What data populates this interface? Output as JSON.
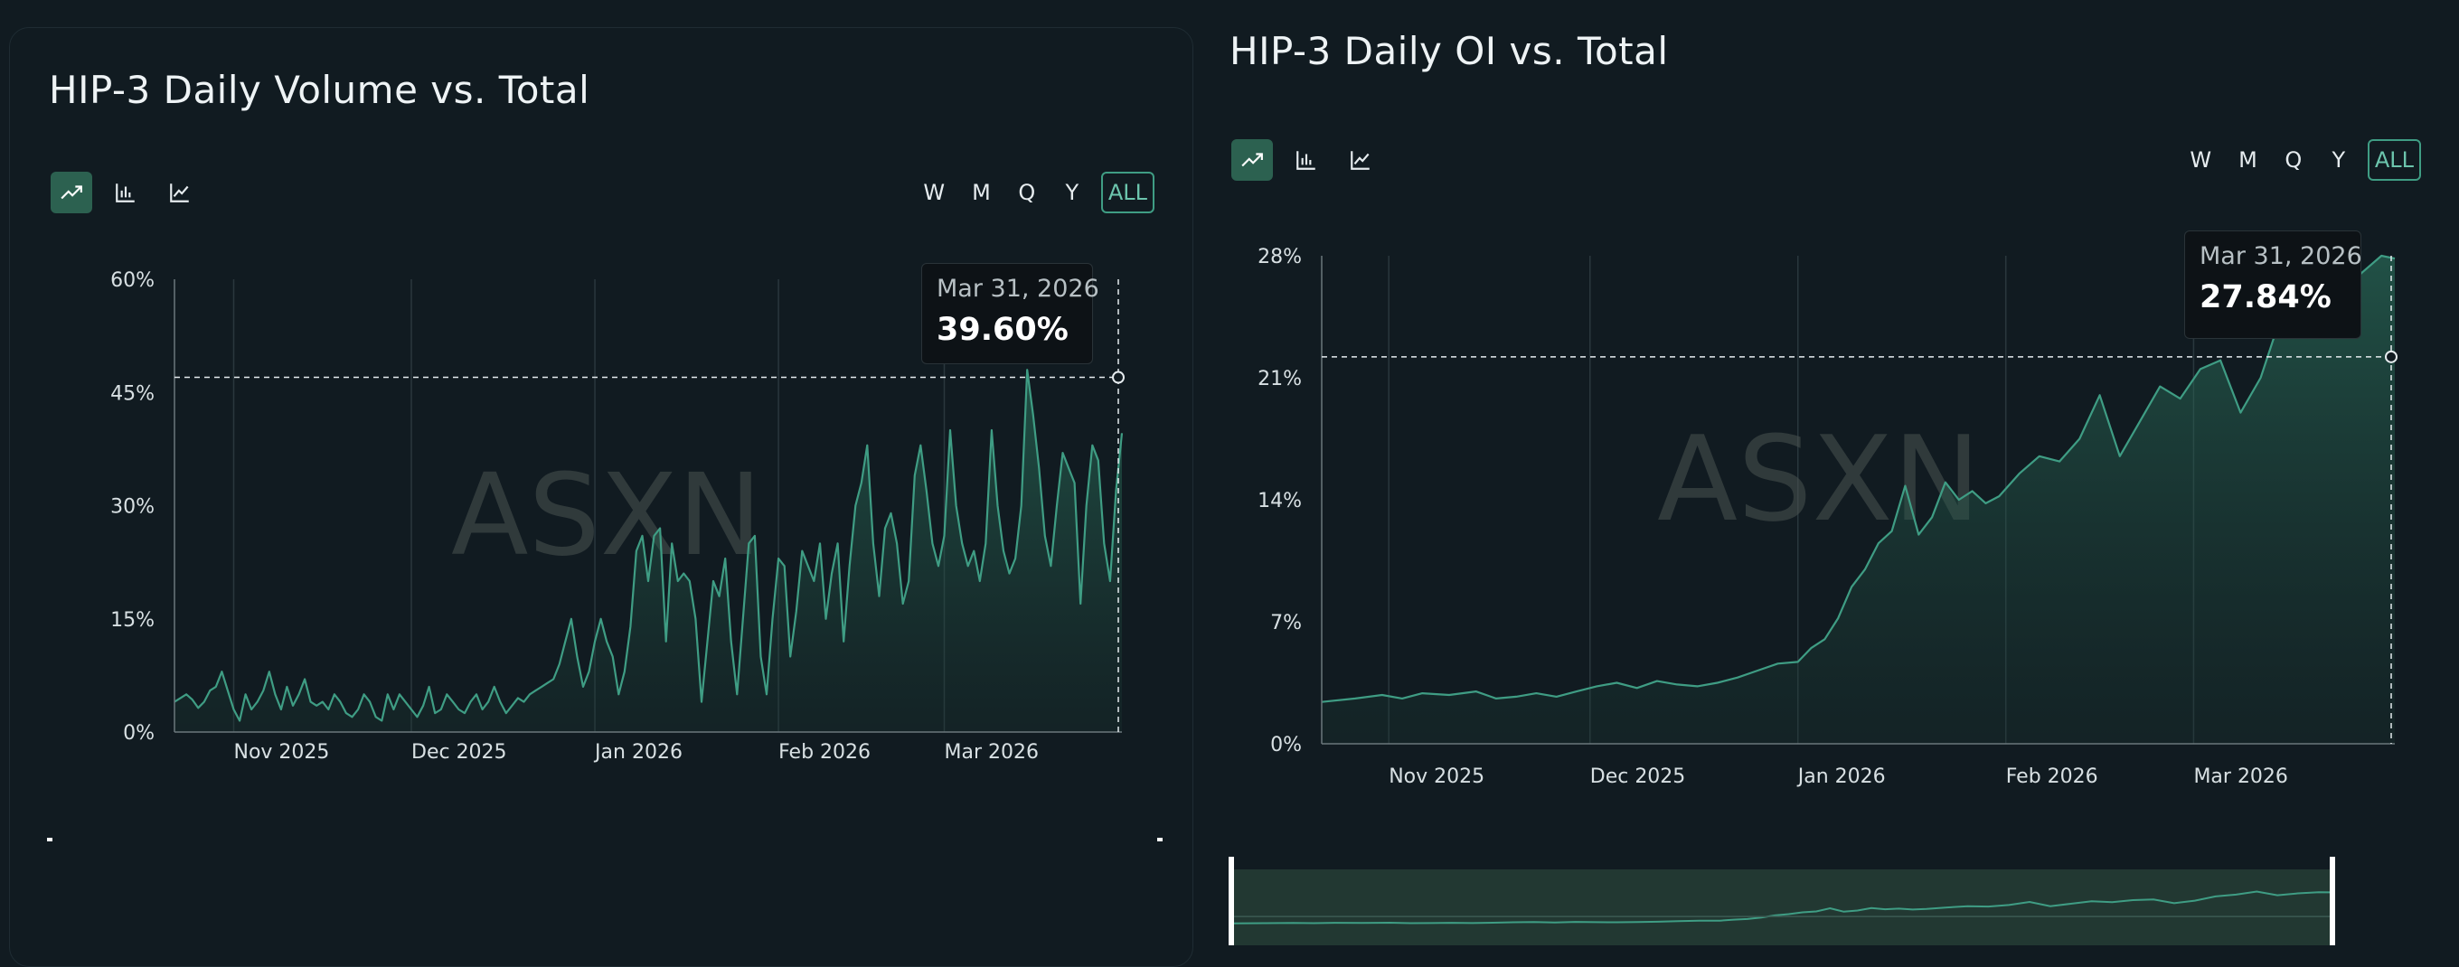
{
  "accent_color": "#3f9d84",
  "background_color": "#111b21",
  "watermark": "ASXN",
  "chart_type_buttons": [
    {
      "icon": "trending-line-icon",
      "active": true
    },
    {
      "icon": "bar-chart-icon",
      "active": false
    },
    {
      "icon": "line-chart-icon",
      "active": false
    }
  ],
  "range_buttons": [
    "W",
    "M",
    "Q",
    "Y",
    "ALL"
  ],
  "active_range": "ALL",
  "chart_data": [
    {
      "type": "area",
      "title": "HIP-3 Daily Volume vs. Total",
      "x_start": "2025-10-22",
      "x_end": "2026-03-31",
      "x_ticks": [
        "Nov 2025",
        "Dec 2025",
        "Jan 2026",
        "Feb 2026",
        "Mar 2026"
      ],
      "y_ticks": [
        "0%",
        "15%",
        "30%",
        "45%",
        "60%"
      ],
      "ylim": [
        0,
        60
      ],
      "y_unit": "%",
      "grid": "vertical",
      "hover": {
        "date": "Mar 31, 2026",
        "value": "39.60%"
      },
      "series": [
        {
          "points": [
            [
              "2025-10-22",
              4
            ],
            [
              "2025-10-23",
              4.5
            ],
            [
              "2025-10-24",
              5
            ],
            [
              "2025-10-25",
              4.3
            ],
            [
              "2025-10-26",
              3.2
            ],
            [
              "2025-10-27",
              4
            ],
            [
              "2025-10-28",
              5.5
            ],
            [
              "2025-10-29",
              6
            ],
            [
              "2025-10-30",
              8
            ],
            [
              "2025-10-31",
              5.5
            ],
            [
              "2025-11-01",
              3
            ],
            [
              "2025-11-02",
              1.5
            ],
            [
              "2025-11-03",
              5
            ],
            [
              "2025-11-04",
              3
            ],
            [
              "2025-11-05",
              4
            ],
            [
              "2025-11-06",
              5.5
            ],
            [
              "2025-11-07",
              8
            ],
            [
              "2025-11-08",
              5
            ],
            [
              "2025-11-09",
              3
            ],
            [
              "2025-11-10",
              6
            ],
            [
              "2025-11-11",
              3.5
            ],
            [
              "2025-11-12",
              5
            ],
            [
              "2025-11-13",
              7
            ],
            [
              "2025-11-14",
              4
            ],
            [
              "2025-11-15",
              3.5
            ],
            [
              "2025-11-16",
              4
            ],
            [
              "2025-11-17",
              3
            ],
            [
              "2025-11-18",
              5
            ],
            [
              "2025-11-19",
              4
            ],
            [
              "2025-11-20",
              2.5
            ],
            [
              "2025-11-21",
              2
            ],
            [
              "2025-11-22",
              3
            ],
            [
              "2025-11-23",
              5
            ],
            [
              "2025-11-24",
              4
            ],
            [
              "2025-11-25",
              2
            ],
            [
              "2025-11-26",
              1.5
            ],
            [
              "2025-11-27",
              5
            ],
            [
              "2025-11-28",
              3
            ],
            [
              "2025-11-29",
              5
            ],
            [
              "2025-11-30",
              4
            ],
            [
              "2025-12-01",
              3
            ],
            [
              "2025-12-02",
              2
            ],
            [
              "2025-12-03",
              3.5
            ],
            [
              "2025-12-04",
              6
            ],
            [
              "2025-12-05",
              2.5
            ],
            [
              "2025-12-06",
              3
            ],
            [
              "2025-12-07",
              5
            ],
            [
              "2025-12-08",
              4
            ],
            [
              "2025-12-09",
              3
            ],
            [
              "2025-12-10",
              2.5
            ],
            [
              "2025-12-11",
              4
            ],
            [
              "2025-12-12",
              5
            ],
            [
              "2025-12-13",
              3
            ],
            [
              "2025-12-14",
              4
            ],
            [
              "2025-12-15",
              6
            ],
            [
              "2025-12-16",
              4
            ],
            [
              "2025-12-17",
              2.5
            ],
            [
              "2025-12-18",
              3.5
            ],
            [
              "2025-12-19",
              4.5
            ],
            [
              "2025-12-20",
              4
            ],
            [
              "2025-12-21",
              5
            ],
            [
              "2025-12-22",
              5.5
            ],
            [
              "2025-12-23",
              6
            ],
            [
              "2025-12-24",
              6.5
            ],
            [
              "2025-12-25",
              7
            ],
            [
              "2025-12-26",
              9
            ],
            [
              "2025-12-27",
              12
            ],
            [
              "2025-12-28",
              15
            ],
            [
              "2025-12-29",
              10
            ],
            [
              "2025-12-30",
              6
            ],
            [
              "2025-12-31",
              8
            ],
            [
              "2026-01-01",
              12
            ],
            [
              "2026-01-02",
              15
            ],
            [
              "2026-01-03",
              12
            ],
            [
              "2026-01-04",
              10
            ],
            [
              "2026-01-05",
              5
            ],
            [
              "2026-01-06",
              8
            ],
            [
              "2026-01-07",
              14
            ],
            [
              "2026-01-08",
              24
            ],
            [
              "2026-01-09",
              26
            ],
            [
              "2026-01-10",
              20
            ],
            [
              "2026-01-11",
              26
            ],
            [
              "2026-01-12",
              27
            ],
            [
              "2026-01-13",
              12
            ],
            [
              "2026-01-14",
              25
            ],
            [
              "2026-01-15",
              20
            ],
            [
              "2026-01-16",
              21
            ],
            [
              "2026-01-17",
              20
            ],
            [
              "2026-01-18",
              15
            ],
            [
              "2026-01-19",
              4
            ],
            [
              "2026-01-20",
              12
            ],
            [
              "2026-01-21",
              20
            ],
            [
              "2026-01-22",
              18
            ],
            [
              "2026-01-23",
              23
            ],
            [
              "2026-01-24",
              12
            ],
            [
              "2026-01-25",
              5
            ],
            [
              "2026-01-26",
              15
            ],
            [
              "2026-01-27",
              25
            ],
            [
              "2026-01-28",
              26
            ],
            [
              "2026-01-29",
              10
            ],
            [
              "2026-01-30",
              5
            ],
            [
              "2026-01-31",
              15
            ],
            [
              "2026-02-01",
              23
            ],
            [
              "2026-02-02",
              22
            ],
            [
              "2026-02-03",
              10
            ],
            [
              "2026-02-04",
              16
            ],
            [
              "2026-02-05",
              24
            ],
            [
              "2026-02-06",
              22
            ],
            [
              "2026-02-07",
              20
            ],
            [
              "2026-02-08",
              25
            ],
            [
              "2026-02-09",
              15
            ],
            [
              "2026-02-10",
              21
            ],
            [
              "2026-02-11",
              25
            ],
            [
              "2026-02-12",
              12
            ],
            [
              "2026-02-13",
              22
            ],
            [
              "2026-02-14",
              30
            ],
            [
              "2026-02-15",
              33
            ],
            [
              "2026-02-16",
              38
            ],
            [
              "2026-02-17",
              25
            ],
            [
              "2026-02-18",
              18
            ],
            [
              "2026-02-19",
              27
            ],
            [
              "2026-02-20",
              29
            ],
            [
              "2026-02-21",
              25
            ],
            [
              "2026-02-22",
              17
            ],
            [
              "2026-02-23",
              20
            ],
            [
              "2026-02-24",
              34
            ],
            [
              "2026-02-25",
              38
            ],
            [
              "2026-02-26",
              32
            ],
            [
              "2026-02-27",
              25
            ],
            [
              "2026-02-28",
              22
            ],
            [
              "2026-03-01",
              26
            ],
            [
              "2026-03-02",
              40
            ],
            [
              "2026-03-03",
              30
            ],
            [
              "2026-03-04",
              25
            ],
            [
              "2026-03-05",
              22
            ],
            [
              "2026-03-06",
              24
            ],
            [
              "2026-03-07",
              20
            ],
            [
              "2026-03-08",
              25
            ],
            [
              "2026-03-09",
              40
            ],
            [
              "2026-03-10",
              30
            ],
            [
              "2026-03-11",
              24
            ],
            [
              "2026-03-12",
              21
            ],
            [
              "2026-03-13",
              23
            ],
            [
              "2026-03-14",
              30
            ],
            [
              "2026-03-15",
              48
            ],
            [
              "2026-03-16",
              42
            ],
            [
              "2026-03-17",
              35
            ],
            [
              "2026-03-18",
              26
            ],
            [
              "2026-03-19",
              22
            ],
            [
              "2026-03-20",
              30
            ],
            [
              "2026-03-21",
              37
            ],
            [
              "2026-03-22",
              35
            ],
            [
              "2026-03-23",
              33
            ],
            [
              "2026-03-24",
              17
            ],
            [
              "2026-03-25",
              30
            ],
            [
              "2026-03-26",
              38
            ],
            [
              "2026-03-27",
              36
            ],
            [
              "2026-03-28",
              25
            ],
            [
              "2026-03-29",
              20
            ],
            [
              "2026-03-30",
              32
            ],
            [
              "2026-03-31",
              39.6
            ]
          ]
        }
      ]
    },
    {
      "type": "area",
      "title": "HIP-3 Daily OI vs. Total",
      "x_start": "2025-10-22",
      "x_end": "2026-03-31",
      "x_ticks": [
        "Nov 2025",
        "Dec 2025",
        "Jan 2026",
        "Feb 2026",
        "Mar 2026"
      ],
      "y_ticks": [
        "0%",
        "7%",
        "14%",
        "21%",
        "28%"
      ],
      "ylim": [
        0,
        28
      ],
      "y_unit": "%",
      "grid": "vertical",
      "hover": {
        "date": "Mar 31, 2026",
        "value": "27.84%"
      },
      "series": [
        {
          "points": [
            [
              "2025-10-22",
              2.4
            ],
            [
              "2025-10-27",
              2.6
            ],
            [
              "2025-10-31",
              2.8
            ],
            [
              "2025-11-03",
              2.6
            ],
            [
              "2025-11-06",
              2.9
            ],
            [
              "2025-11-10",
              2.8
            ],
            [
              "2025-11-14",
              3.0
            ],
            [
              "2025-11-17",
              2.6
            ],
            [
              "2025-11-20",
              2.7
            ],
            [
              "2025-11-23",
              2.9
            ],
            [
              "2025-11-26",
              2.7
            ],
            [
              "2025-11-29",
              3.0
            ],
            [
              "2025-12-02",
              3.3
            ],
            [
              "2025-12-05",
              3.5
            ],
            [
              "2025-12-08",
              3.2
            ],
            [
              "2025-12-11",
              3.6
            ],
            [
              "2025-12-14",
              3.4
            ],
            [
              "2025-12-17",
              3.3
            ],
            [
              "2025-12-20",
              3.5
            ],
            [
              "2025-12-23",
              3.8
            ],
            [
              "2025-12-26",
              4.2
            ],
            [
              "2025-12-29",
              4.6
            ],
            [
              "2026-01-01",
              4.7
            ],
            [
              "2026-01-03",
              5.5
            ],
            [
              "2026-01-05",
              6.0
            ],
            [
              "2026-01-07",
              7.2
            ],
            [
              "2026-01-09",
              9.0
            ],
            [
              "2026-01-11",
              10.0
            ],
            [
              "2026-01-13",
              11.5
            ],
            [
              "2026-01-15",
              12.2
            ],
            [
              "2026-01-17",
              14.8
            ],
            [
              "2026-01-19",
              12.0
            ],
            [
              "2026-01-21",
              13.0
            ],
            [
              "2026-01-23",
              15.0
            ],
            [
              "2026-01-25",
              14.0
            ],
            [
              "2026-01-27",
              14.5
            ],
            [
              "2026-01-29",
              13.8
            ],
            [
              "2026-01-31",
              14.2
            ],
            [
              "2026-02-03",
              15.5
            ],
            [
              "2026-02-06",
              16.5
            ],
            [
              "2026-02-09",
              16.2
            ],
            [
              "2026-02-12",
              17.5
            ],
            [
              "2026-02-15",
              20.0
            ],
            [
              "2026-02-18",
              16.5
            ],
            [
              "2026-02-21",
              18.5
            ],
            [
              "2026-02-24",
              20.5
            ],
            [
              "2026-02-27",
              19.8
            ],
            [
              "2026-03-02",
              21.5
            ],
            [
              "2026-03-05",
              22.0
            ],
            [
              "2026-03-08",
              19.0
            ],
            [
              "2026-03-11",
              21.0
            ],
            [
              "2026-03-14",
              24.5
            ],
            [
              "2026-03-17",
              26.0
            ],
            [
              "2026-03-20",
              28.5
            ],
            [
              "2026-03-23",
              25.5
            ],
            [
              "2026-03-26",
              27.0
            ],
            [
              "2026-03-29",
              28.0
            ],
            [
              "2026-03-31",
              27.84
            ]
          ]
        }
      ]
    }
  ]
}
